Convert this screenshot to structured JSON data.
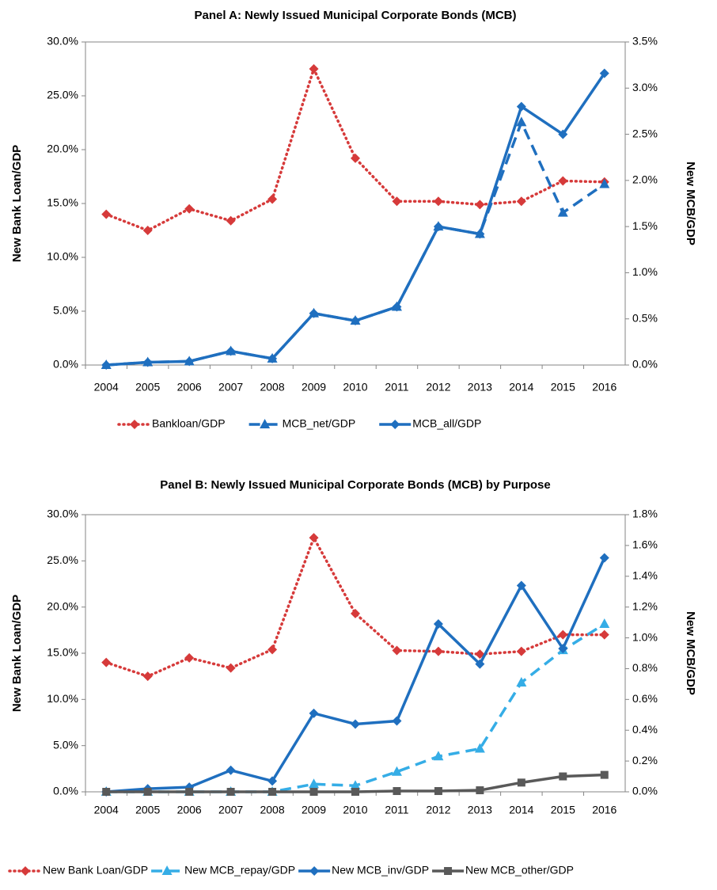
{
  "chart_data": [
    {
      "type": "line",
      "title": "Panel A: Newly Issued Municipal Corporate Bonds (MCB)",
      "y_label": "New Bank Loan/GDP",
      "y2_label": "New MCB/GDP",
      "categories": [
        "2004",
        "2005",
        "2006",
        "2007",
        "2008",
        "2009",
        "2010",
        "2011",
        "2012",
        "2013",
        "2014",
        "2015",
        "2016"
      ],
      "ylim": [
        0,
        30
      ],
      "yticks": [
        {
          "value": 0,
          "label": "0.0%"
        },
        {
          "value": 5,
          "label": "5.0%"
        },
        {
          "value": 10,
          "label": "10.0%"
        },
        {
          "value": 15,
          "label": "15.0%"
        },
        {
          "value": 20,
          "label": "20.0%"
        },
        {
          "value": 25,
          "label": "25.0%"
        },
        {
          "value": 30,
          "label": "30.0%"
        }
      ],
      "y2lim": [
        0,
        3.5
      ],
      "y2ticks": [
        {
          "value": 0,
          "label": "0.0%"
        },
        {
          "value": 0.5,
          "label": "0.5%"
        },
        {
          "value": 1,
          "label": "1.0%"
        },
        {
          "value": 1.5,
          "label": "1.5%"
        },
        {
          "value": 2,
          "label": "2.0%"
        },
        {
          "value": 2.5,
          "label": "2.5%"
        },
        {
          "value": 3,
          "label": "3.0%"
        },
        {
          "value": 3.5,
          "label": "3.5%"
        }
      ],
      "grid": false,
      "series": [
        {
          "name": "Bankloan/GDP",
          "color": "#d63a3a",
          "style": "dotted",
          "marker": "diamond",
          "values": [
            14.0,
            12.5,
            14.5,
            13.4,
            15.4,
            27.5,
            19.2,
            15.2,
            15.2,
            14.9,
            15.2,
            17.1,
            17.0
          ]
        },
        {
          "name": "MCB_net/GDP",
          "color": "#1f6fbf",
          "style": "dashed",
          "marker": "triangle",
          "axis": "y2",
          "values": [
            0,
            0.03,
            0.04,
            0.15,
            0.07,
            0.56,
            0.48,
            0.63,
            1.5,
            1.42,
            2.63,
            1.65,
            1.96
          ]
        },
        {
          "name": "MCB_all/GDP",
          "color": "#1f6fbf",
          "style": "solid",
          "marker": "diamond",
          "axis": "y2",
          "values": [
            0,
            0.03,
            0.04,
            0.15,
            0.07,
            0.56,
            0.48,
            0.63,
            1.5,
            1.42,
            2.8,
            2.5,
            3.16
          ]
        }
      ]
    },
    {
      "type": "line",
      "title": "Panel B: Newly Issued Municipal Corporate Bonds (MCB)  by Purpose",
      "y_label": "New Bank Loan/GDP",
      "y2_label": "New MCB/GDP",
      "categories": [
        "2004",
        "2005",
        "2006",
        "2007",
        "2008",
        "2009",
        "2010",
        "2011",
        "2012",
        "2013",
        "2014",
        "2015",
        "2016"
      ],
      "ylim": [
        0,
        30
      ],
      "yticks": [
        {
          "value": 0,
          "label": "0.0%"
        },
        {
          "value": 5,
          "label": "5.0%"
        },
        {
          "value": 10,
          "label": "10.0%"
        },
        {
          "value": 15,
          "label": "15.0%"
        },
        {
          "value": 20,
          "label": "20.0%"
        },
        {
          "value": 25,
          "label": "25.0%"
        },
        {
          "value": 30,
          "label": "30.0%"
        }
      ],
      "y2lim": [
        0,
        1.8
      ],
      "y2ticks": [
        {
          "value": 0,
          "label": "0.0%"
        },
        {
          "value": 0.2,
          "label": "0.2%"
        },
        {
          "value": 0.4,
          "label": "0.4%"
        },
        {
          "value": 0.6,
          "label": "0.6%"
        },
        {
          "value": 0.8,
          "label": "0.8%"
        },
        {
          "value": 1,
          "label": "1.0%"
        },
        {
          "value": 1.2,
          "label": "1.2%"
        },
        {
          "value": 1.4,
          "label": "1.4%"
        },
        {
          "value": 1.6,
          "label": "1.6%"
        },
        {
          "value": 1.8,
          "label": "1.8%"
        }
      ],
      "grid": false,
      "series": [
        {
          "name": "New Bank Loan/GDP",
          "color": "#d63a3a",
          "style": "dotted",
          "marker": "diamond",
          "values": [
            14.0,
            12.5,
            14.5,
            13.4,
            15.4,
            27.5,
            19.3,
            15.3,
            15.2,
            14.9,
            15.2,
            17.0,
            17.0
          ]
        },
        {
          "name": "New MCB_repay/GDP",
          "color": "#35ade6",
          "style": "dashed",
          "marker": "triangle",
          "axis": "y2",
          "values": [
            0,
            0,
            0,
            0,
            0,
            0.05,
            0.04,
            0.13,
            0.23,
            0.28,
            0.71,
            0.92,
            1.09
          ]
        },
        {
          "name": "New MCB_inv/GDP",
          "color": "#1f6fbf",
          "style": "solid",
          "marker": "diamond",
          "axis": "y2",
          "values": [
            0,
            0.02,
            0.03,
            0.14,
            0.07,
            0.51,
            0.44,
            0.46,
            1.09,
            0.83,
            1.34,
            0.93,
            1.52
          ]
        },
        {
          "name": "New MCB_other/GDP",
          "color": "#595959",
          "style": "solid",
          "marker": "square",
          "axis": "y2",
          "values": [
            0,
            0,
            0,
            0,
            0,
            0,
            0,
            0.005,
            0.005,
            0.01,
            0.06,
            0.1,
            0.11
          ]
        }
      ]
    }
  ]
}
